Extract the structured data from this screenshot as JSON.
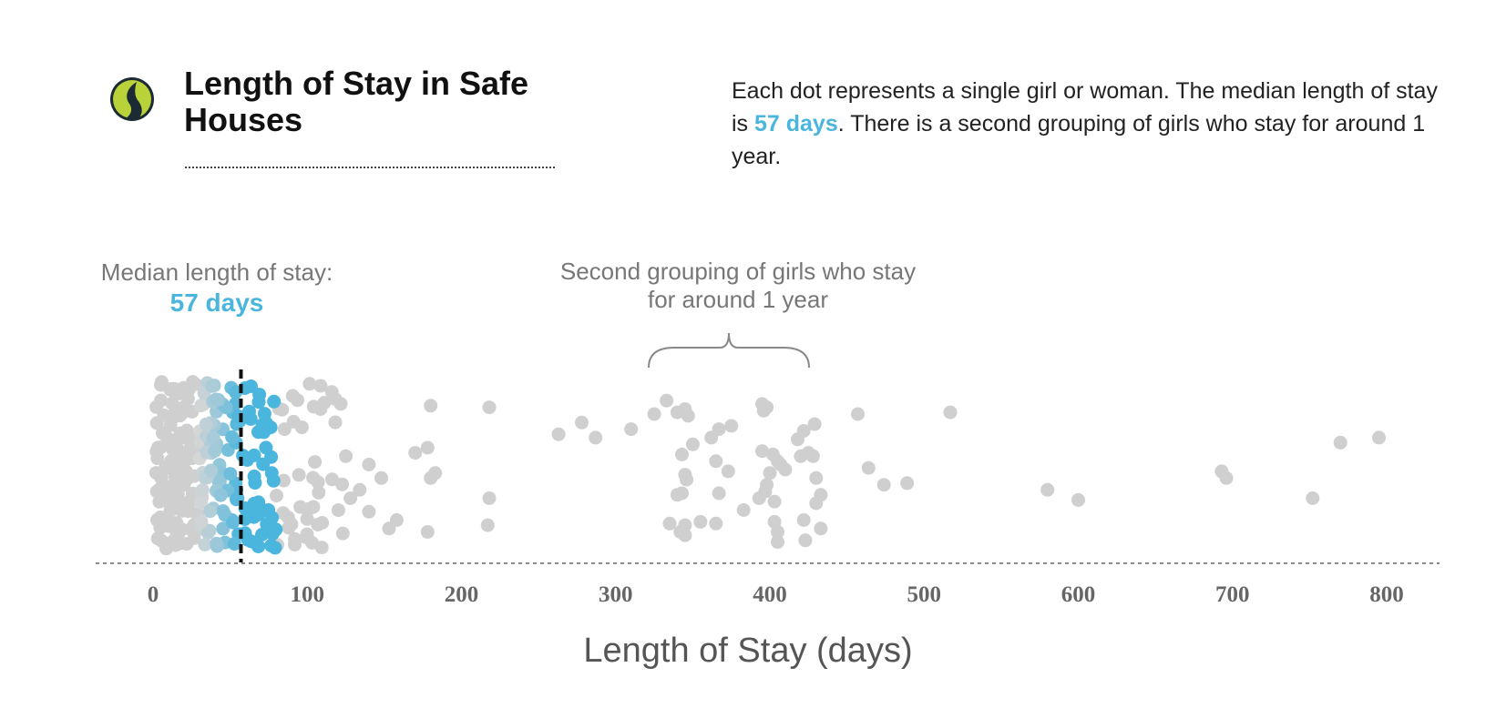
{
  "title": "Length of Stay in Safe Houses",
  "description": {
    "before": "Each dot represents a single girl or woman. The median length of stay is ",
    "highlight": "57  days",
    "after": ". There is a second grouping of girls who stay for around 1 year."
  },
  "annotations": {
    "median_prefix": "Median length of stay:",
    "median_value": "57 days",
    "second_grouping": "Second grouping of girls who stay for around 1 year"
  },
  "colors": {
    "highlight": "#4ab5dd",
    "dot_gray": "#cfcfcf",
    "median_line": "#111111"
  },
  "chart_data": {
    "type": "scatter",
    "title": "Length of Stay in Safe Houses",
    "xlabel": "Length of Stay (days)",
    "ylabel": "",
    "xlim": [
      0,
      800
    ],
    "xticks": [
      0,
      100,
      200,
      300,
      400,
      500,
      600,
      700,
      800
    ],
    "median": 57,
    "highlight_range": [
      30,
      80
    ],
    "grid": false,
    "dense_cluster": {
      "range": [
        0,
        125
      ],
      "count": 300
    },
    "points": [
      {
        "x": 180,
        "y": 0.85
      },
      {
        "x": 218,
        "y": 0.84
      },
      {
        "x": 170,
        "y": 0.57
      },
      {
        "x": 178,
        "y": 0.6
      },
      {
        "x": 183,
        "y": 0.45
      },
      {
        "x": 180,
        "y": 0.42
      },
      {
        "x": 140,
        "y": 0.5
      },
      {
        "x": 148,
        "y": 0.42
      },
      {
        "x": 134,
        "y": 0.35
      },
      {
        "x": 218,
        "y": 0.3
      },
      {
        "x": 140,
        "y": 0.22
      },
      {
        "x": 158,
        "y": 0.17
      },
      {
        "x": 153,
        "y": 0.12
      },
      {
        "x": 178,
        "y": 0.1
      },
      {
        "x": 217,
        "y": 0.14
      },
      {
        "x": 125,
        "y": 0.55
      },
      {
        "x": 128,
        "y": 0.3
      },
      {
        "x": 263,
        "y": 0.68
      },
      {
        "x": 278,
        "y": 0.75
      },
      {
        "x": 287,
        "y": 0.66
      },
      {
        "x": 310,
        "y": 0.71
      },
      {
        "x": 325,
        "y": 0.8
      },
      {
        "x": 333,
        "y": 0.88
      },
      {
        "x": 340,
        "y": 0.81
      },
      {
        "x": 345,
        "y": 0.83
      },
      {
        "x": 347,
        "y": 0.79
      },
      {
        "x": 395,
        "y": 0.86
      },
      {
        "x": 398,
        "y": 0.84
      },
      {
        "x": 396,
        "y": 0.82
      },
      {
        "x": 375,
        "y": 0.73
      },
      {
        "x": 367,
        "y": 0.71
      },
      {
        "x": 362,
        "y": 0.66
      },
      {
        "x": 350,
        "y": 0.62
      },
      {
        "x": 343,
        "y": 0.56
      },
      {
        "x": 345,
        "y": 0.44
      },
      {
        "x": 346,
        "y": 0.41
      },
      {
        "x": 365,
        "y": 0.52
      },
      {
        "x": 373,
        "y": 0.46
      },
      {
        "x": 367,
        "y": 0.33
      },
      {
        "x": 340,
        "y": 0.32
      },
      {
        "x": 343,
        "y": 0.33
      },
      {
        "x": 335,
        "y": 0.15
      },
      {
        "x": 345,
        "y": 0.14
      },
      {
        "x": 355,
        "y": 0.16
      },
      {
        "x": 365,
        "y": 0.15
      },
      {
        "x": 342,
        "y": 0.1
      },
      {
        "x": 345,
        "y": 0.08
      },
      {
        "x": 383,
        "y": 0.23
      },
      {
        "x": 398,
        "y": 0.38
      },
      {
        "x": 400,
        "y": 0.45
      },
      {
        "x": 405,
        "y": 0.52
      },
      {
        "x": 410,
        "y": 0.47
      },
      {
        "x": 395,
        "y": 0.58
      },
      {
        "x": 402,
        "y": 0.56
      },
      {
        "x": 407,
        "y": 0.5
      },
      {
        "x": 420,
        "y": 0.55
      },
      {
        "x": 428,
        "y": 0.55
      },
      {
        "x": 418,
        "y": 0.65
      },
      {
        "x": 422,
        "y": 0.7
      },
      {
        "x": 429,
        "y": 0.74
      },
      {
        "x": 425,
        "y": 0.57
      },
      {
        "x": 393,
        "y": 0.3
      },
      {
        "x": 397,
        "y": 0.34
      },
      {
        "x": 403,
        "y": 0.28
      },
      {
        "x": 430,
        "y": 0.42
      },
      {
        "x": 433,
        "y": 0.32
      },
      {
        "x": 430,
        "y": 0.27
      },
      {
        "x": 403,
        "y": 0.16
      },
      {
        "x": 405,
        "y": 0.1
      },
      {
        "x": 405,
        "y": 0.04
      },
      {
        "x": 422,
        "y": 0.17
      },
      {
        "x": 423,
        "y": 0.05
      },
      {
        "x": 433,
        "y": 0.12
      },
      {
        "x": 457,
        "y": 0.8
      },
      {
        "x": 517,
        "y": 0.81
      },
      {
        "x": 464,
        "y": 0.48
      },
      {
        "x": 474,
        "y": 0.38
      },
      {
        "x": 489,
        "y": 0.39
      },
      {
        "x": 580,
        "y": 0.35
      },
      {
        "x": 600,
        "y": 0.29
      },
      {
        "x": 693,
        "y": 0.46
      },
      {
        "x": 696,
        "y": 0.42
      },
      {
        "x": 752,
        "y": 0.3
      },
      {
        "x": 770,
        "y": 0.63
      },
      {
        "x": 795,
        "y": 0.66
      }
    ]
  }
}
